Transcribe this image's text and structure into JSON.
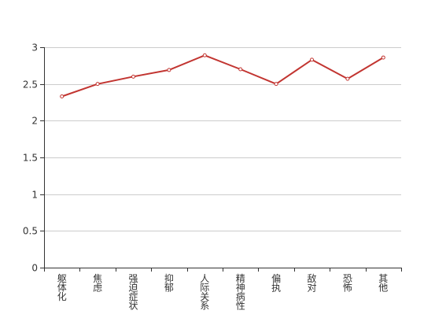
{
  "chart_data": {
    "type": "line",
    "categories": [
      "躯体化",
      "焦虑",
      "强迫症状",
      "抑郁",
      "人际关系",
      "精神病性",
      "偏执",
      "敌对",
      "恐怖",
      "其他"
    ],
    "category_lines": [
      [
        "躯",
        "体",
        "化"
      ],
      [
        "焦",
        "虑"
      ],
      [
        "强",
        "迫",
        "症",
        "状"
      ],
      [
        "抑",
        "郁"
      ],
      [
        "人",
        "际",
        "关",
        "系"
      ],
      [
        "精",
        "神",
        "病",
        "性"
      ],
      [
        "偏",
        "执"
      ],
      [
        "敌",
        "对"
      ],
      [
        "恐",
        "怖"
      ],
      [
        "其",
        "他"
      ]
    ],
    "series": [
      {
        "values": [
          2.33,
          2.5,
          2.6,
          2.69,
          2.89,
          2.7,
          2.5,
          2.83,
          2.57,
          2.86
        ]
      }
    ],
    "ylim": [
      0,
      3
    ],
    "yticks": [
      0,
      0.5,
      1,
      1.5,
      2,
      2.5,
      3
    ],
    "ytick_labels": [
      "0",
      "0.5",
      "1",
      "1.5",
      "2",
      "2.5",
      "3"
    ],
    "grid": true,
    "colors": {
      "line": "#c23531",
      "grid": "#cccccc",
      "axis": "#333333",
      "text": "#333333",
      "marker_fill": "#ffffff"
    }
  }
}
